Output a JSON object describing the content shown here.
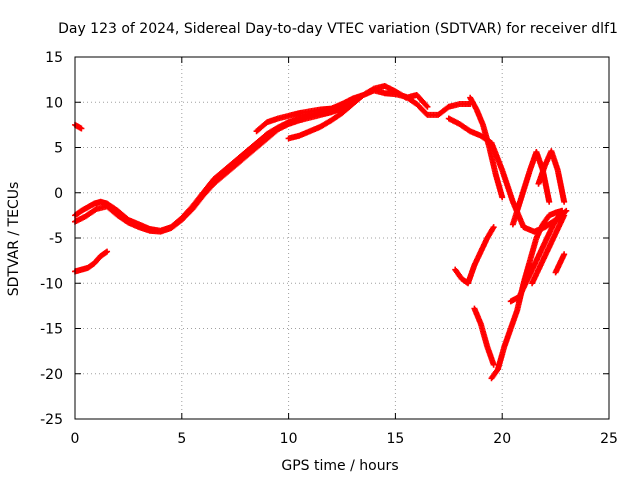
{
  "chart_data": {
    "type": "scatter",
    "title": "Day 123 of 2024, Sidereal Day-to-day VTEC variation (SDTVAR) for receiver dlf1",
    "xlabel": "GPS time / hours",
    "ylabel": "SDTVAR / TECUs",
    "xlim": [
      0,
      25
    ],
    "ylim": [
      -25,
      15
    ],
    "xticks": [
      0,
      5,
      10,
      15,
      20,
      25
    ],
    "yticks": [
      -25,
      -20,
      -15,
      -10,
      -5,
      0,
      5,
      10,
      15
    ],
    "grid": true,
    "marker": "+",
    "color": "#ff0000",
    "series": [
      {
        "name": "main-arc-1",
        "x": [
          0.0,
          0.3,
          0.6,
          0.9,
          1.2,
          1.5,
          2.0,
          2.5,
          3.0,
          3.5,
          4.0,
          4.5,
          5.0,
          5.5,
          6.0,
          6.5,
          7.0,
          7.5,
          8.0,
          8.5,
          9.0,
          9.5,
          10.0,
          10.5,
          11.0,
          11.5,
          12.0,
          12.5
        ],
        "y": [
          -2.5,
          -2.0,
          -1.6,
          -1.2,
          -1.0,
          -1.2,
          -2.0,
          -3.0,
          -3.5,
          -4.0,
          -4.2,
          -3.8,
          -2.8,
          -1.5,
          0.0,
          1.5,
          2.5,
          3.5,
          4.5,
          5.5,
          6.5,
          7.2,
          7.8,
          8.2,
          8.6,
          8.9,
          9.2,
          9.5
        ]
      },
      {
        "name": "main-arc-2",
        "x": [
          0.0,
          0.5,
          1.0,
          1.5,
          2.0,
          2.5,
          3.0,
          3.5,
          4.0,
          4.5,
          5.0,
          5.5,
          6.0,
          6.5,
          7.0,
          7.5,
          8.0,
          8.5,
          9.0,
          9.5,
          10.0,
          10.5,
          11.0,
          11.5,
          12.0,
          12.5,
          13.0
        ],
        "y": [
          -3.2,
          -2.6,
          -1.8,
          -1.5,
          -2.5,
          -3.3,
          -3.8,
          -4.2,
          -4.3,
          -3.9,
          -3.0,
          -1.8,
          -0.3,
          1.0,
          2.0,
          3.0,
          4.0,
          5.0,
          6.0,
          7.0,
          7.6,
          8.0,
          8.3,
          8.6,
          8.9,
          9.3,
          9.8
        ]
      },
      {
        "name": "upper-band",
        "x": [
          8.5,
          9.0,
          9.5,
          10.0,
          10.5,
          11.0,
          11.5,
          12.0,
          12.5,
          13.0,
          13.5,
          14.0,
          14.5,
          15.0,
          15.5,
          16.0,
          16.5,
          17.0,
          17.5,
          18.0,
          18.5
        ],
        "y": [
          6.8,
          7.8,
          8.2,
          8.5,
          8.8,
          9.0,
          9.2,
          9.3,
          9.8,
          10.4,
          10.8,
          11.3,
          11.0,
          10.9,
          10.6,
          9.8,
          8.6,
          8.6,
          9.5,
          9.8,
          9.8
        ]
      },
      {
        "name": "upper-band-2",
        "x": [
          10.0,
          10.5,
          11.0,
          11.5,
          12.0,
          12.5,
          13.0,
          13.5,
          14.0,
          14.5,
          15.0,
          15.5,
          16.0,
          16.5
        ],
        "y": [
          6.0,
          6.3,
          6.8,
          7.3,
          8.0,
          8.8,
          9.8,
          10.8,
          11.5,
          11.8,
          11.2,
          10.5,
          10.8,
          9.5
        ]
      },
      {
        "name": "descent",
        "x": [
          17.5,
          18.0,
          18.5,
          19.0,
          19.5,
          20.0,
          20.5,
          21.0,
          21.5,
          22.0,
          22.5,
          23.0
        ],
        "y": [
          8.2,
          7.6,
          6.8,
          6.3,
          5.5,
          2.5,
          -1.0,
          -3.8,
          -4.3,
          -3.8,
          -3.0,
          -2.0
        ]
      },
      {
        "name": "dip",
        "x": [
          18.5,
          18.8,
          19.1,
          19.4,
          19.7,
          20.0
        ],
        "y": [
          10.5,
          9.2,
          7.5,
          5.0,
          2.0,
          -0.5
        ]
      },
      {
        "name": "rise-1",
        "x": [
          19.5,
          19.8,
          20.1,
          20.4,
          20.7,
          21.0,
          21.3,
          21.6,
          21.9,
          22.2,
          22.5,
          22.8
        ],
        "y": [
          -20.5,
          -19.5,
          -17.0,
          -15.0,
          -13.0,
          -10.0,
          -7.5,
          -5.0,
          -3.5,
          -2.5,
          -2.2,
          -2.0
        ]
      },
      {
        "name": "rise-2",
        "x": [
          20.4,
          20.8,
          21.2,
          21.6,
          22.0,
          22.4,
          22.8
        ],
        "y": [
          -12.0,
          -11.5,
          -9.5,
          -7.5,
          -5.5,
          -3.5,
          -2.0
        ]
      },
      {
        "name": "arch-1",
        "x": [
          20.5,
          20.9,
          21.3,
          21.6,
          21.9,
          22.2
        ],
        "y": [
          -3.5,
          -0.5,
          2.5,
          4.5,
          2.5,
          -1.0
        ]
      },
      {
        "name": "arch-2",
        "x": [
          21.7,
          22.0,
          22.3,
          22.6,
          22.9
        ],
        "y": [
          1.0,
          3.0,
          4.6,
          2.5,
          -1.0
        ]
      },
      {
        "name": "arch-3",
        "x": [
          21.4,
          21.8,
          22.2,
          22.6,
          22.9
        ],
        "y": [
          -10.0,
          -8.0,
          -6.0,
          -4.0,
          -2.5
        ]
      },
      {
        "name": "short-1",
        "x": [
          0.0,
          0.3
        ],
        "y": [
          7.5,
          7.1
        ]
      },
      {
        "name": "short-2",
        "x": [
          0.0,
          0.3,
          0.6,
          0.9,
          1.2,
          1.5
        ],
        "y": [
          -8.7,
          -8.5,
          -8.3,
          -7.8,
          -7.0,
          -6.5
        ]
      },
      {
        "name": "short-3",
        "x": [
          17.8,
          18.1,
          18.4,
          18.7,
          19.0,
          19.3,
          19.6
        ],
        "y": [
          -8.5,
          -9.5,
          -10.0,
          -8.0,
          -6.5,
          -5.0,
          -3.8
        ]
      },
      {
        "name": "short-4",
        "x": [
          18.7,
          19.0,
          19.3,
          19.6
        ],
        "y": [
          -12.8,
          -14.5,
          -17.0,
          -19.0
        ]
      },
      {
        "name": "short-5",
        "x": [
          22.5,
          22.7,
          22.9
        ],
        "y": [
          -8.8,
          -7.8,
          -6.8
        ]
      }
    ]
  }
}
